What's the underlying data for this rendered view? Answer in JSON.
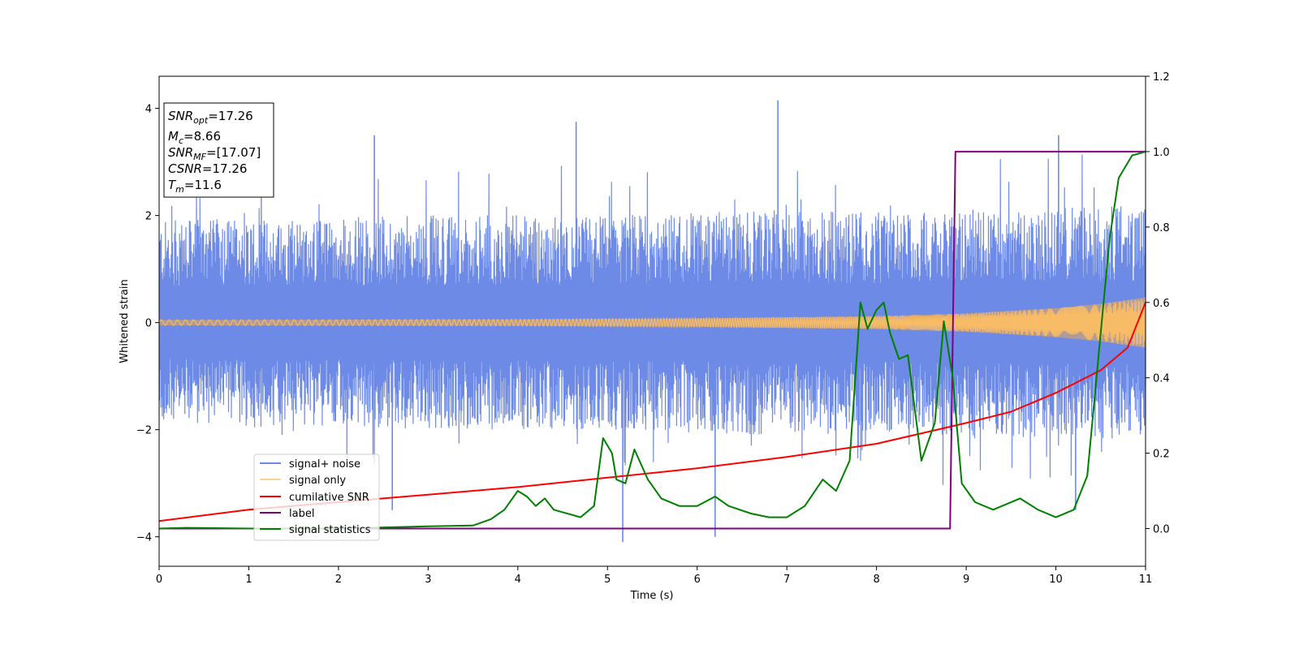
{
  "chart_data": {
    "type": "line",
    "xlabel": "Time (s)",
    "ylabel": "Whitened strain",
    "xlim": [
      0,
      11
    ],
    "ylim": [
      -4.55,
      4.6
    ],
    "ylim_right": [
      -0.1,
      1.2
    ],
    "x_ticks": [
      "0",
      "1",
      "2",
      "3",
      "4",
      "5",
      "6",
      "7",
      "8",
      "9",
      "10",
      "11"
    ],
    "y_ticks": [
      "−4",
      "−2",
      "0",
      "2",
      "4"
    ],
    "y_ticks_right": [
      "0.0",
      "0.2",
      "0.4",
      "0.6",
      "0.8",
      "1.0",
      "1.2"
    ],
    "info_box": {
      "snr_opt": {
        "main": "SNR",
        "sub": "opt",
        "rest": "=17.26"
      },
      "mc": {
        "main": "M",
        "sub": "c",
        "rest": "=8.66"
      },
      "snr_mf": {
        "main": "SNR",
        "sub": "MF",
        "rest": "=[17.07]"
      },
      "csnr": {
        "main": "CSNR",
        "sub": "",
        "rest": "=17.26"
      },
      "tm": {
        "main": "T",
        "sub": "m",
        "rest": "=11.6"
      }
    },
    "legend": {
      "placement": "lower-left",
      "entries": [
        "signal+ noise",
        "signal only",
        "cumilative SNR",
        "label",
        "signal statistics"
      ]
    },
    "colors": {
      "noise": "#6d8ae6",
      "signal": "#ffbf60",
      "signal_fill": "#c9a07c",
      "cumulative": "#ff0000",
      "label": "#800080",
      "stats": "#008000"
    },
    "series": [
      {
        "name": "signal+ noise",
        "axis": "left",
        "envelope_hi": [
          [
            0,
            1.9
          ],
          [
            1,
            1.95
          ],
          [
            2,
            1.95
          ],
          [
            3,
            2.0
          ],
          [
            4,
            2.0
          ],
          [
            5,
            2.0
          ],
          [
            6,
            2.05
          ],
          [
            7,
            2.1
          ],
          [
            8,
            2.05
          ],
          [
            9,
            2.1
          ],
          [
            10,
            2.15
          ],
          [
            11,
            2.2
          ]
        ],
        "envelope_lo": [
          [
            0,
            -1.9
          ],
          [
            1,
            -1.95
          ],
          [
            2,
            -1.95
          ],
          [
            3,
            -2.0
          ],
          [
            4,
            -2.0
          ],
          [
            5,
            -2.0
          ],
          [
            6,
            -2.05
          ],
          [
            7,
            -2.1
          ],
          [
            8,
            -2.05
          ],
          [
            9,
            -2.1
          ],
          [
            10,
            -2.15
          ],
          [
            11,
            -2.2
          ]
        ],
        "peaks": [
          [
            2.4,
            3.5
          ],
          [
            4.65,
            3.75
          ],
          [
            6.9,
            4.15
          ],
          [
            10.03,
            3.5
          ],
          [
            5.17,
            -4.1
          ],
          [
            6.2,
            -4.0
          ],
          [
            10.22,
            -3.5
          ],
          [
            2.6,
            -3.5
          ]
        ]
      },
      {
        "name": "signal only",
        "axis": "left",
        "amplitude": [
          [
            0,
            0.05
          ],
          [
            4,
            0.06
          ],
          [
            6,
            0.08
          ],
          [
            8,
            0.12
          ],
          [
            9,
            0.17
          ],
          [
            10,
            0.27
          ],
          [
            10.5,
            0.35
          ],
          [
            11,
            0.47
          ]
        ]
      },
      {
        "name": "cumilative SNR",
        "axis": "right",
        "points": [
          [
            0,
            0.02
          ],
          [
            1,
            0.05
          ],
          [
            2,
            0.07
          ],
          [
            3,
            0.09
          ],
          [
            4,
            0.11
          ],
          [
            5,
            0.135
          ],
          [
            6,
            0.16
          ],
          [
            7,
            0.19
          ],
          [
            8,
            0.225
          ],
          [
            9,
            0.28
          ],
          [
            9.5,
            0.31
          ],
          [
            10,
            0.36
          ],
          [
            10.5,
            0.42
          ],
          [
            10.8,
            0.48
          ],
          [
            11,
            0.6
          ]
        ]
      },
      {
        "name": "label",
        "axis": "right",
        "points": [
          [
            0,
            0.0
          ],
          [
            8.82,
            0.0
          ],
          [
            8.88,
            1.0
          ],
          [
            11,
            1.0
          ]
        ]
      },
      {
        "name": "signal statistics",
        "axis": "right",
        "points": [
          [
            0,
            0.0
          ],
          [
            0.3,
            0.002
          ],
          [
            1,
            0.0
          ],
          [
            2,
            0.0
          ],
          [
            2.5,
            0.003
          ],
          [
            3,
            0.006
          ],
          [
            3.5,
            0.008
          ],
          [
            3.7,
            0.025
          ],
          [
            3.85,
            0.05
          ],
          [
            4.0,
            0.1
          ],
          [
            4.1,
            0.085
          ],
          [
            4.2,
            0.06
          ],
          [
            4.3,
            0.08
          ],
          [
            4.4,
            0.05
          ],
          [
            4.7,
            0.03
          ],
          [
            4.85,
            0.06
          ],
          [
            4.95,
            0.24
          ],
          [
            5.05,
            0.2
          ],
          [
            5.1,
            0.13
          ],
          [
            5.2,
            0.12
          ],
          [
            5.3,
            0.21
          ],
          [
            5.45,
            0.13
          ],
          [
            5.6,
            0.08
          ],
          [
            5.8,
            0.06
          ],
          [
            6.0,
            0.06
          ],
          [
            6.2,
            0.085
          ],
          [
            6.35,
            0.06
          ],
          [
            6.6,
            0.04
          ],
          [
            6.8,
            0.03
          ],
          [
            7.0,
            0.03
          ],
          [
            7.2,
            0.06
          ],
          [
            7.4,
            0.13
          ],
          [
            7.55,
            0.1
          ],
          [
            7.7,
            0.18
          ],
          [
            7.82,
            0.6
          ],
          [
            7.9,
            0.53
          ],
          [
            8.0,
            0.58
          ],
          [
            8.08,
            0.6
          ],
          [
            8.15,
            0.52
          ],
          [
            8.25,
            0.45
          ],
          [
            8.35,
            0.46
          ],
          [
            8.5,
            0.18
          ],
          [
            8.65,
            0.28
          ],
          [
            8.75,
            0.55
          ],
          [
            8.85,
            0.4
          ],
          [
            8.95,
            0.12
          ],
          [
            9.1,
            0.07
          ],
          [
            9.3,
            0.05
          ],
          [
            9.6,
            0.08
          ],
          [
            9.8,
            0.05
          ],
          [
            10.0,
            0.03
          ],
          [
            10.2,
            0.05
          ],
          [
            10.35,
            0.14
          ],
          [
            10.5,
            0.52
          ],
          [
            10.6,
            0.77
          ],
          [
            10.7,
            0.93
          ],
          [
            10.85,
            0.99
          ],
          [
            11,
            1.0
          ]
        ]
      }
    ]
  }
}
